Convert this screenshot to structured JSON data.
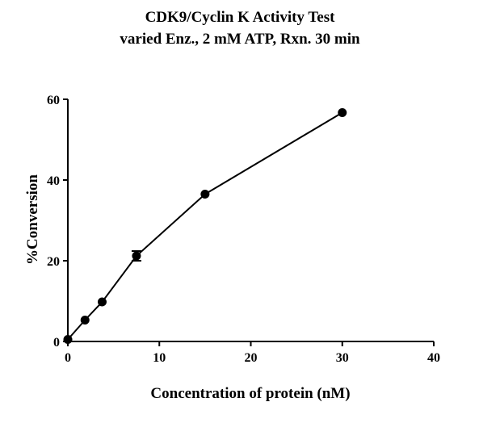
{
  "chart_data": {
    "type": "scatter",
    "title_lines": [
      "CDK9/Cyclin K Activity Test",
      "varied Enz., 2 mM ATP, Rxn. 30 min"
    ],
    "xlabel": "Concentration of protein (nM)",
    "ylabel": "%Conversion",
    "xlim": [
      0,
      40
    ],
    "ylim": [
      0,
      60
    ],
    "xticks": [
      0,
      10,
      20,
      30,
      40
    ],
    "yticks": [
      0,
      20,
      40,
      60
    ],
    "grid": false,
    "series": [
      {
        "x": [
          0,
          1.875,
          3.75,
          7.5,
          15,
          30
        ],
        "y": [
          0.5,
          5.3,
          9.8,
          21.2,
          36.5,
          56.7
        ],
        "error": [
          0,
          0,
          0,
          1.2,
          0,
          0
        ],
        "color": "#000000",
        "marker": "circle",
        "connected": true
      }
    ]
  }
}
